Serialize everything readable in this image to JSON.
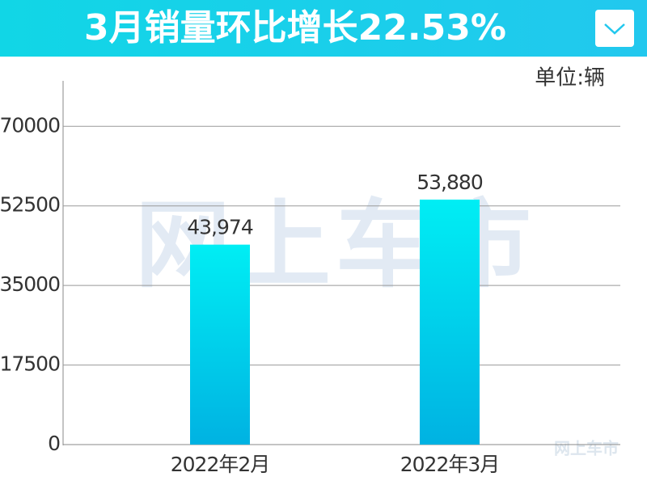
{
  "chart_data": {
    "type": "bar",
    "title": "3月销量环比增长22.53%",
    "unit": "单位:辆",
    "categories": [
      "2022年2月",
      "2022年3月"
    ],
    "values": [
      43974,
      53880
    ],
    "value_labels": [
      "43,974",
      "53,880"
    ],
    "color": "#00cfe8",
    "ylim": [
      0,
      80000
    ],
    "yticks": [
      0,
      17500,
      35000,
      52500,
      70000
    ],
    "grid": true,
    "watermark": "网上车市"
  }
}
